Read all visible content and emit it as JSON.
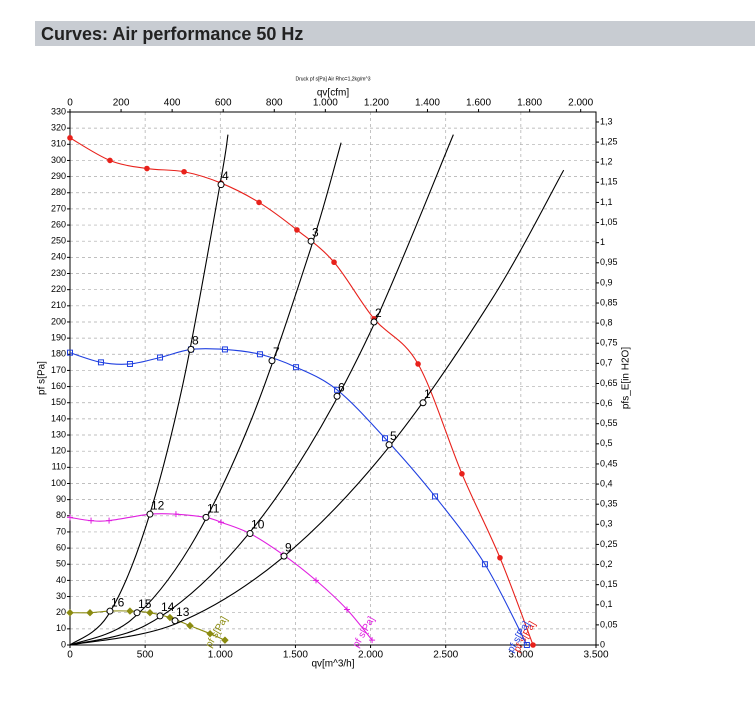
{
  "header": {
    "title": "Curves: Air performance 50 Hz"
  },
  "chart_data": {
    "type": "line",
    "subtitle": "Druck pf s[Pa] Air Rho=1,2kg/m^3",
    "x_label": "qv[m^3/h]",
    "x2_label": "qv[cfm]",
    "y_label": "pf s[Pa]",
    "y2_label": "pfs_E[in H2O]",
    "xlim": [
      0,
      3500
    ],
    "xticks": [
      0,
      500,
      {
        "value": 1000,
        "label": "1.000"
      },
      {
        "value": 1500,
        "label": "1.500"
      },
      {
        "value": 2000,
        "label": "2.000"
      },
      {
        "value": 2500,
        "label": "2.500"
      },
      {
        "value": 3000,
        "label": "3.000"
      },
      {
        "value": 3500,
        "label": "3.500"
      }
    ],
    "x2lim": [
      0,
      2060
    ],
    "x2ticks": [
      0,
      200,
      400,
      600,
      800,
      {
        "value": 1000,
        "label": "1.000"
      },
      {
        "value": 1200,
        "label": "1.200"
      },
      {
        "value": 1400,
        "label": "1.400"
      },
      {
        "value": 1600,
        "label": "1.600"
      },
      {
        "value": 1800,
        "label": "1.800"
      },
      {
        "value": 2000,
        "label": "2.000"
      }
    ],
    "ylim": [
      0,
      330
    ],
    "yticks": [
      0,
      10,
      20,
      30,
      40,
      50,
      60,
      70,
      80,
      90,
      100,
      110,
      120,
      130,
      140,
      150,
      160,
      170,
      180,
      190,
      200,
      210,
      220,
      230,
      240,
      250,
      260,
      270,
      280,
      290,
      300,
      310,
      320,
      330
    ],
    "y2lim": [
      0,
      1.3248
    ],
    "y2ticks": [
      0,
      {
        "value": 0.05,
        "label": "0,05"
      },
      {
        "value": 0.1,
        "label": "0,1"
      },
      {
        "value": 0.15,
        "label": "0,15"
      },
      {
        "value": 0.2,
        "label": "0,2"
      },
      {
        "value": 0.25,
        "label": "0,25"
      },
      {
        "value": 0.3,
        "label": "0,3"
      },
      {
        "value": 0.35,
        "label": "0,35"
      },
      {
        "value": 0.4,
        "label": "0,4"
      },
      {
        "value": 0.45,
        "label": "0,45"
      },
      {
        "value": 0.5,
        "label": "0,5"
      },
      {
        "value": 0.55,
        "label": "0,55"
      },
      {
        "value": 0.6,
        "label": "0,6"
      },
      {
        "value": 0.65,
        "label": "0,65"
      },
      {
        "value": 0.7,
        "label": "0,7"
      },
      {
        "value": 0.75,
        "label": "0,75"
      },
      {
        "value": 0.8,
        "label": "0,8"
      },
      {
        "value": 0.85,
        "label": "0,85"
      },
      {
        "value": 0.9,
        "label": "0,9"
      },
      {
        "value": 0.95,
        "label": "0,95"
      },
      1,
      {
        "value": 1.05,
        "label": "1,05"
      },
      {
        "value": 1.1,
        "label": "1,1"
      },
      {
        "value": 1.15,
        "label": "1,15"
      },
      {
        "value": 1.2,
        "label": "1,2"
      },
      {
        "value": 1.25,
        "label": "1,25"
      },
      {
        "value": 1.3,
        "label": "1,3"
      }
    ],
    "grid": true,
    "series": [
      {
        "name": "pf s[Pa]",
        "color": "#e8211b",
        "marker": "dot",
        "x": [
          0,
          266,
          512,
          759,
          1005,
          1258,
          1510,
          1757,
          2023,
          2316,
          2608,
          2861,
          3081
        ],
        "values": [
          314,
          300,
          295,
          293,
          286,
          274,
          257,
          237,
          202,
          174,
          106,
          54,
          0
        ]
      },
      {
        "name": "pf s[Pa]",
        "color": "#1f3fe0",
        "marker": "square",
        "x": [
          0,
          206,
          399,
          599,
          805,
          1031,
          1264,
          1504,
          1777,
          2096,
          2429,
          2761,
          3040
        ],
        "values": [
          181,
          175,
          174,
          178,
          183,
          183,
          180,
          172,
          158,
          128,
          92,
          50,
          0
        ]
      },
      {
        "name": "pf s[Pa]",
        "color": "#e020e0",
        "marker": "plus",
        "x": [
          0,
          140,
          260,
          532,
          705,
          905,
          1005,
          1198,
          1417,
          1637,
          1843,
          2010
        ],
        "values": [
          79,
          77,
          77,
          81,
          81,
          79,
          76,
          69,
          56,
          40,
          22,
          3
        ]
      },
      {
        "name": "pf s[Pa]",
        "color": "#8b8b10",
        "marker": "diamond",
        "x": [
          0,
          133,
          266,
          399,
          532,
          665,
          798,
          932,
          1031
        ],
        "values": [
          20,
          20,
          21,
          21,
          20,
          17,
          12,
          7,
          3
        ]
      },
      {
        "color": "#000000",
        "x": [
          0,
          250,
          500,
          750,
          1000,
          1051
        ],
        "values": [
          0,
          18,
          72,
          161,
          286,
          316
        ]
      },
      {
        "color": "#000000",
        "x": [
          0,
          400,
          800,
          1200,
          1600,
          1804
        ],
        "values": [
          0,
          15,
          61,
          138,
          245,
          311
        ]
      },
      {
        "color": "#000000",
        "x": [
          0,
          500,
          1000,
          1500,
          2000,
          2551
        ],
        "values": [
          0,
          12,
          49,
          109,
          194,
          316
        ]
      },
      {
        "color": "#000000",
        "x": [
          0,
          700,
          1400,
          2100,
          2800,
          3285
        ],
        "values": [
          0,
          13,
          53,
          120,
          213,
          294
        ]
      }
    ],
    "operating_points": [
      {
        "label": "1",
        "x": 2349,
        "y": 150
      },
      {
        "label": "2",
        "x": 2023,
        "y": 200
      },
      {
        "label": "3",
        "x": 1604,
        "y": 250
      },
      {
        "label": "4",
        "x": 1005,
        "y": 285
      },
      {
        "label": "5",
        "x": 2123,
        "y": 124
      },
      {
        "label": "6",
        "x": 1777,
        "y": 154
      },
      {
        "label": "7",
        "x": 1344,
        "y": 176
      },
      {
        "label": "8",
        "x": 805,
        "y": 183
      },
      {
        "label": "9",
        "x": 1424,
        "y": 55
      },
      {
        "label": "10",
        "x": 1198,
        "y": 69
      },
      {
        "label": "11",
        "x": 905,
        "y": 79
      },
      {
        "label": "12",
        "x": 532,
        "y": 81
      },
      {
        "label": "13",
        "x": 699,
        "y": 15
      },
      {
        "label": "14",
        "x": 599,
        "y": 18
      },
      {
        "label": "15",
        "x": 446,
        "y": 20
      },
      {
        "label": "16",
        "x": 266,
        "y": 21
      }
    ]
  }
}
